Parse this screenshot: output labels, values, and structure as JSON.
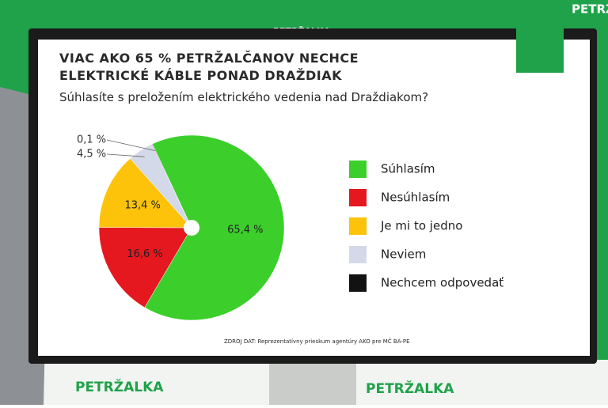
{
  "background_brand": "PETRŽALKA",
  "chart_data": {
    "type": "pie",
    "title": "VIAC AKO 65 % PETRŽALČANOV NECHCE ELEKTRICKÉ KÁBLE PONAD DRAŽDIAK",
    "subtitle": "Súhlasíte s preložením elektrického vedenia nad Draždiakom?",
    "source": "ZDROJ DÁT: Reprezentatívny prieskum agentúry AKO pre MČ BA-PE",
    "categories": [
      "Súhlasím",
      "Nesúhlasím",
      "Je mi to jedno",
      "Neviem",
      "Nechcem odpovedať"
    ],
    "values": [
      65.4,
      16.6,
      13.4,
      4.5,
      0.1
    ],
    "value_labels": [
      "65,4 %",
      "16,6 %",
      "13,4 %",
      "4,5 %",
      "0,1 %"
    ],
    "colors": [
      "#3ccf2c",
      "#e5171f",
      "#fdc20a",
      "#d3d9e8",
      "#121212"
    ],
    "legend": "right"
  }
}
